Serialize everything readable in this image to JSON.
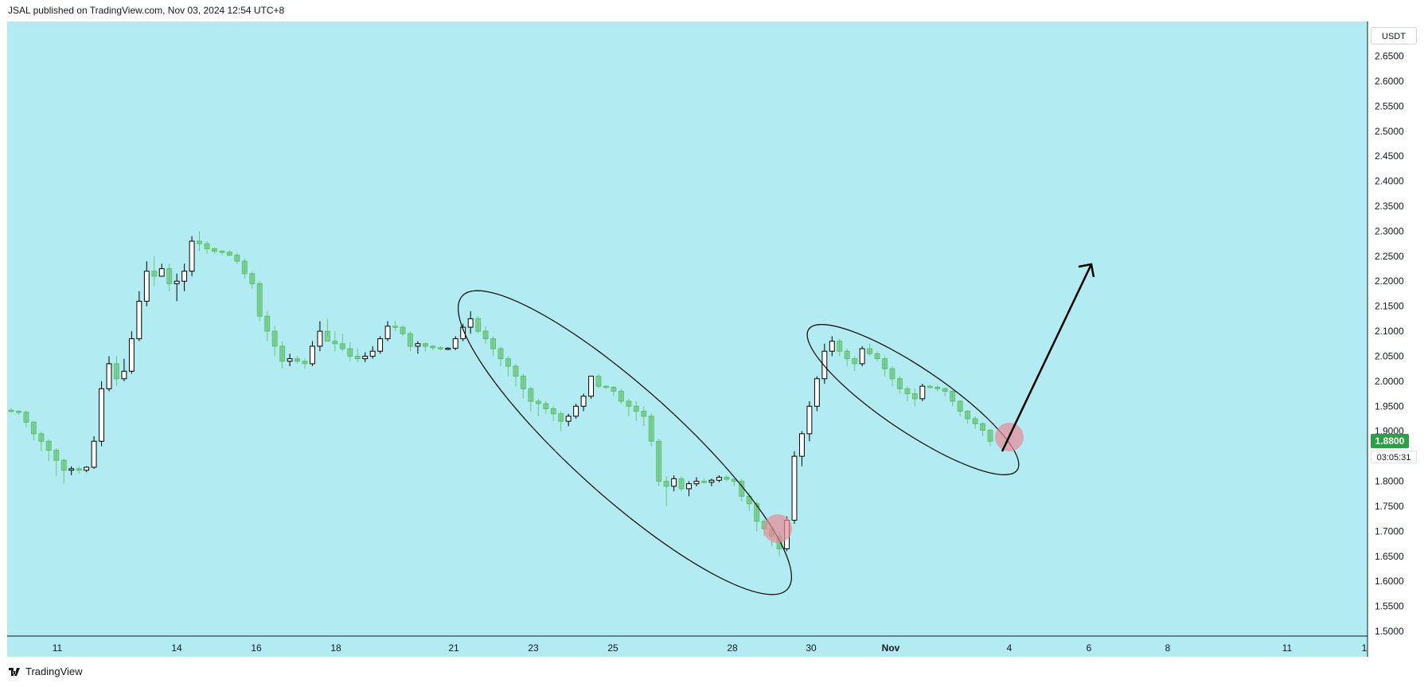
{
  "header": {
    "text": "JSAL published on TradingView.com, Nov 03, 2024 12:54 UTC+8"
  },
  "currency": "USDT",
  "last_price_label": "1.8800",
  "countdown": "03:05:31",
  "footer": {
    "brand": "TradingView",
    "logo_icon": "tradingview-logo-icon"
  },
  "colors": {
    "background": "#b3ebf2",
    "candle_up_fill": "#ffffff",
    "candle_down": "#5cbf6a",
    "annotation_circle": "#e88a96",
    "price_label": "#2e9e47"
  },
  "chart_data": {
    "type": "candlestick",
    "y_axis": {
      "min": 1.5,
      "max": 2.7,
      "side": "right",
      "ticks": [
        "2.6500",
        "2.6000",
        "2.5500",
        "2.5000",
        "2.4500",
        "2.4000",
        "2.3500",
        "2.3000",
        "2.2500",
        "2.2000",
        "2.1500",
        "2.1000",
        "2.0500",
        "2.0000",
        "1.9500",
        "1.9000",
        "1.8500",
        "1.8000",
        "1.7500",
        "1.7000",
        "1.6500",
        "1.6000",
        "1.5500",
        "1.5000"
      ]
    },
    "x_axis": {
      "ticks": [
        "11",
        "14",
        "16",
        "18",
        "21",
        "23",
        "25",
        "28",
        "30",
        "Nov",
        "4",
        "6",
        "8",
        "11",
        "1"
      ]
    },
    "candles": [
      [
        1.942,
        1.946,
        1.937,
        1.94
      ],
      [
        1.94,
        1.942,
        1.933,
        1.938
      ],
      [
        1.938,
        1.941,
        1.908,
        1.918
      ],
      [
        1.918,
        1.921,
        1.882,
        1.895
      ],
      [
        1.895,
        1.9,
        1.86,
        1.88
      ],
      [
        1.88,
        1.884,
        1.84,
        1.862
      ],
      [
        1.862,
        1.866,
        1.81,
        1.842
      ],
      [
        1.842,
        1.845,
        1.795,
        1.822
      ],
      [
        1.822,
        1.83,
        1.812,
        1.825
      ],
      [
        1.825,
        1.83,
        1.815,
        1.822
      ],
      [
        1.822,
        1.83,
        1.818,
        1.828
      ],
      [
        1.828,
        1.89,
        1.825,
        1.88
      ],
      [
        1.88,
        2.0,
        1.87,
        1.985
      ],
      [
        1.985,
        2.05,
        1.98,
        2.035
      ],
      [
        2.035,
        2.05,
        1.99,
        2.005
      ],
      [
        2.005,
        2.045,
        2.0,
        2.02
      ],
      [
        2.02,
        2.1,
        2.015,
        2.085
      ],
      [
        2.085,
        2.18,
        2.08,
        2.16
      ],
      [
        2.16,
        2.24,
        2.15,
        2.22
      ],
      [
        2.22,
        2.25,
        2.19,
        2.21
      ],
      [
        2.21,
        2.235,
        2.21,
        2.225
      ],
      [
        2.225,
        2.235,
        2.18,
        2.195
      ],
      [
        2.195,
        2.215,
        2.16,
        2.2
      ],
      [
        2.2,
        2.235,
        2.18,
        2.22
      ],
      [
        2.22,
        2.29,
        2.21,
        2.28
      ],
      [
        2.28,
        2.3,
        2.26,
        2.275
      ],
      [
        2.275,
        2.28,
        2.255,
        2.265
      ],
      [
        2.265,
        2.268,
        2.255,
        2.26
      ],
      [
        2.26,
        2.263,
        2.252,
        2.258
      ],
      [
        2.258,
        2.262,
        2.25,
        2.252
      ],
      [
        2.252,
        2.256,
        2.235,
        2.24
      ],
      [
        2.24,
        2.245,
        2.205,
        2.215
      ],
      [
        2.215,
        2.22,
        2.185,
        2.195
      ],
      [
        2.195,
        2.2,
        2.12,
        2.13
      ],
      [
        2.13,
        2.14,
        2.08,
        2.1
      ],
      [
        2.1,
        2.11,
        2.05,
        2.07
      ],
      [
        2.07,
        2.08,
        2.025,
        2.04
      ],
      [
        2.04,
        2.055,
        2.03,
        2.045
      ],
      [
        2.045,
        2.05,
        2.035,
        2.04
      ],
      [
        2.04,
        2.045,
        2.025,
        2.035
      ],
      [
        2.035,
        2.08,
        2.03,
        2.07
      ],
      [
        2.07,
        2.12,
        2.06,
        2.1
      ],
      [
        2.1,
        2.125,
        2.09,
        2.08
      ],
      [
        2.08,
        2.1,
        2.06,
        2.075
      ],
      [
        2.075,
        2.095,
        2.06,
        2.065
      ],
      [
        2.065,
        2.078,
        2.04,
        2.05
      ],
      [
        2.05,
        2.065,
        2.038,
        2.045
      ],
      [
        2.045,
        2.058,
        2.038,
        2.05
      ],
      [
        2.05,
        2.07,
        2.045,
        2.06
      ],
      [
        2.06,
        2.09,
        2.055,
        2.085
      ],
      [
        2.085,
        2.12,
        2.08,
        2.11
      ],
      [
        2.11,
        2.12,
        2.1,
        2.108
      ],
      [
        2.108,
        2.112,
        2.09,
        2.095
      ],
      [
        2.095,
        2.1,
        2.06,
        2.07
      ],
      [
        2.07,
        2.08,
        2.055,
        2.075
      ],
      [
        2.075,
        2.078,
        2.06,
        2.07
      ],
      [
        2.07,
        2.072,
        2.062,
        2.067
      ],
      [
        2.067,
        2.07,
        2.062,
        2.066
      ],
      [
        2.066,
        2.068,
        2.062,
        2.066
      ],
      [
        2.066,
        2.09,
        2.062,
        2.085
      ],
      [
        2.085,
        2.115,
        2.08,
        2.108
      ],
      [
        2.108,
        2.14,
        2.095,
        2.125
      ],
      [
        2.125,
        2.13,
        2.095,
        2.1
      ],
      [
        2.1,
        2.11,
        2.075,
        2.085
      ],
      [
        2.085,
        2.09,
        2.05,
        2.065
      ],
      [
        2.065,
        2.07,
        2.03,
        2.045
      ],
      [
        2.045,
        2.05,
        2.01,
        2.03
      ],
      [
        2.03,
        2.035,
        1.99,
        2.01
      ],
      [
        2.01,
        2.015,
        1.965,
        1.985
      ],
      [
        1.985,
        1.99,
        1.94,
        1.96
      ],
      [
        1.96,
        1.965,
        1.93,
        1.955
      ],
      [
        1.955,
        1.96,
        1.935,
        1.945
      ],
      [
        1.945,
        1.95,
        1.92,
        1.935
      ],
      [
        1.935,
        1.94,
        1.9,
        1.92
      ],
      [
        1.92,
        1.935,
        1.91,
        1.93
      ],
      [
        1.93,
        1.955,
        1.925,
        1.95
      ],
      [
        1.95,
        1.975,
        1.94,
        1.97
      ],
      [
        1.97,
        2.01,
        1.965,
        2.01
      ],
      [
        2.01,
        2.015,
        1.985,
        1.99
      ],
      [
        1.99,
        1.992,
        1.985,
        1.988
      ],
      [
        1.988,
        1.99,
        1.97,
        1.98
      ],
      [
        1.98,
        1.985,
        1.955,
        1.96
      ],
      [
        1.96,
        1.965,
        1.93,
        1.95
      ],
      [
        1.95,
        1.96,
        1.92,
        1.94
      ],
      [
        1.94,
        1.95,
        1.91,
        1.93
      ],
      [
        1.93,
        1.935,
        1.87,
        1.88
      ],
      [
        1.88,
        1.885,
        1.79,
        1.8
      ],
      [
        1.8,
        1.81,
        1.75,
        1.79
      ],
      [
        1.79,
        1.812,
        1.78,
        1.805
      ],
      [
        1.805,
        1.81,
        1.78,
        1.785
      ],
      [
        1.785,
        1.8,
        1.77,
        1.795
      ],
      [
        1.795,
        1.808,
        1.79,
        1.8
      ],
      [
        1.8,
        1.806,
        1.795,
        1.798
      ],
      [
        1.798,
        1.805,
        1.79,
        1.802
      ],
      [
        1.802,
        1.812,
        1.798,
        1.808
      ],
      [
        1.808,
        1.812,
        1.8,
        1.804
      ],
      [
        1.804,
        1.81,
        1.79,
        1.8
      ],
      [
        1.8,
        1.805,
        1.76,
        1.77
      ],
      [
        1.77,
        1.778,
        1.74,
        1.755
      ],
      [
        1.755,
        1.76,
        1.7,
        1.72
      ],
      [
        1.72,
        1.725,
        1.69,
        1.705
      ],
      [
        1.705,
        1.71,
        1.67,
        1.69
      ],
      [
        1.69,
        1.7,
        1.65,
        1.665
      ],
      [
        1.665,
        1.73,
        1.66,
        1.722
      ],
      [
        1.722,
        1.86,
        1.715,
        1.85
      ],
      [
        1.85,
        1.9,
        1.83,
        1.895
      ],
      [
        1.895,
        1.96,
        1.88,
        1.95
      ],
      [
        1.95,
        2.01,
        1.94,
        2.005
      ],
      [
        2.005,
        2.075,
        1.995,
        2.06
      ],
      [
        2.06,
        2.09,
        2.05,
        2.08
      ],
      [
        2.08,
        2.085,
        2.05,
        2.06
      ],
      [
        2.06,
        2.065,
        2.03,
        2.045
      ],
      [
        2.045,
        2.05,
        2.02,
        2.035
      ],
      [
        2.035,
        2.07,
        2.03,
        2.065
      ],
      [
        2.065,
        2.075,
        2.05,
        2.055
      ],
      [
        2.055,
        2.06,
        2.04,
        2.045
      ],
      [
        2.045,
        2.05,
        2.01,
        2.025
      ],
      [
        2.025,
        2.03,
        1.99,
        2.005
      ],
      [
        2.005,
        2.01,
        1.975,
        1.985
      ],
      [
        1.985,
        1.99,
        1.96,
        1.975
      ],
      [
        1.975,
        1.985,
        1.95,
        1.965
      ],
      [
        1.965,
        1.995,
        1.96,
        1.99
      ],
      [
        1.99,
        1.993,
        1.985,
        1.988
      ],
      [
        1.988,
        1.992,
        1.98,
        1.985
      ],
      [
        1.985,
        1.988,
        1.97,
        1.98
      ],
      [
        1.98,
        1.982,
        1.95,
        1.96
      ],
      [
        1.96,
        1.962,
        1.93,
        1.94
      ],
      [
        1.94,
        1.942,
        1.915,
        1.925
      ],
      [
        1.925,
        1.93,
        1.905,
        1.915
      ],
      [
        1.915,
        1.918,
        1.89,
        1.902
      ],
      [
        1.902,
        1.905,
        1.87,
        1.88
      ]
    ]
  }
}
